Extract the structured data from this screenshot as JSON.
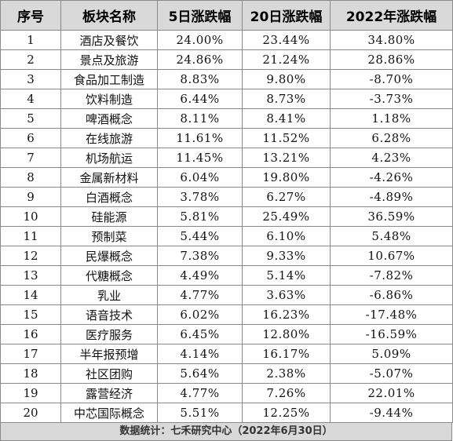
{
  "table": {
    "headers": [
      "序号",
      "板块名称",
      "5日涨跌幅",
      "20日涨跌幅",
      "2022年涨跌幅"
    ],
    "rows": [
      [
        "1",
        "酒店及餐饮",
        "24.00%",
        "23.44%",
        "34.80%"
      ],
      [
        "2",
        "景点及旅游",
        "24.86%",
        "21.24%",
        "28.86%"
      ],
      [
        "3",
        "食品加工制造",
        "8.83%",
        "9.80%",
        "-8.70%"
      ],
      [
        "4",
        "饮料制造",
        "6.44%",
        "8.73%",
        "-3.73%"
      ],
      [
        "5",
        "啤酒概念",
        "8.11%",
        "8.41%",
        "1.18%"
      ],
      [
        "6",
        "在线旅游",
        "11.61%",
        "11.52%",
        "6.28%"
      ],
      [
        "7",
        "机场航运",
        "11.45%",
        "13.21%",
        "4.23%"
      ],
      [
        "8",
        "金属新材料",
        "6.04%",
        "19.80%",
        "-4.26%"
      ],
      [
        "9",
        "白酒概念",
        "3.78%",
        "6.27%",
        "-4.89%"
      ],
      [
        "10",
        "硅能源",
        "5.81%",
        "25.49%",
        "36.59%"
      ],
      [
        "11",
        "预制菜",
        "5.44%",
        "6.10%",
        "5.48%"
      ],
      [
        "12",
        "民爆概念",
        "7.38%",
        "9.33%",
        "10.67%"
      ],
      [
        "13",
        "代糖概念",
        "4.49%",
        "5.14%",
        "-7.82%"
      ],
      [
        "14",
        "乳业",
        "4.77%",
        "3.63%",
        "-6.86%"
      ],
      [
        "15",
        "语音技术",
        "6.02%",
        "16.23%",
        "-17.48%"
      ],
      [
        "16",
        "医疗服务",
        "6.45%",
        "12.80%",
        "-16.59%"
      ],
      [
        "17",
        "半年报预增",
        "4.14%",
        "16.17%",
        "5.09%"
      ],
      [
        "18",
        "社区团购",
        "5.64%",
        "2.38%",
        "-5.07%"
      ],
      [
        "19",
        "露营经济",
        "4.77%",
        "7.26%",
        "22.01%"
      ],
      [
        "20",
        "中芯国际概念",
        "5.51%",
        "12.25%",
        "-9.44%"
      ]
    ]
  },
  "footer": {
    "source_note": "数据统计：七禾研究中心（2022年6月30日）"
  }
}
